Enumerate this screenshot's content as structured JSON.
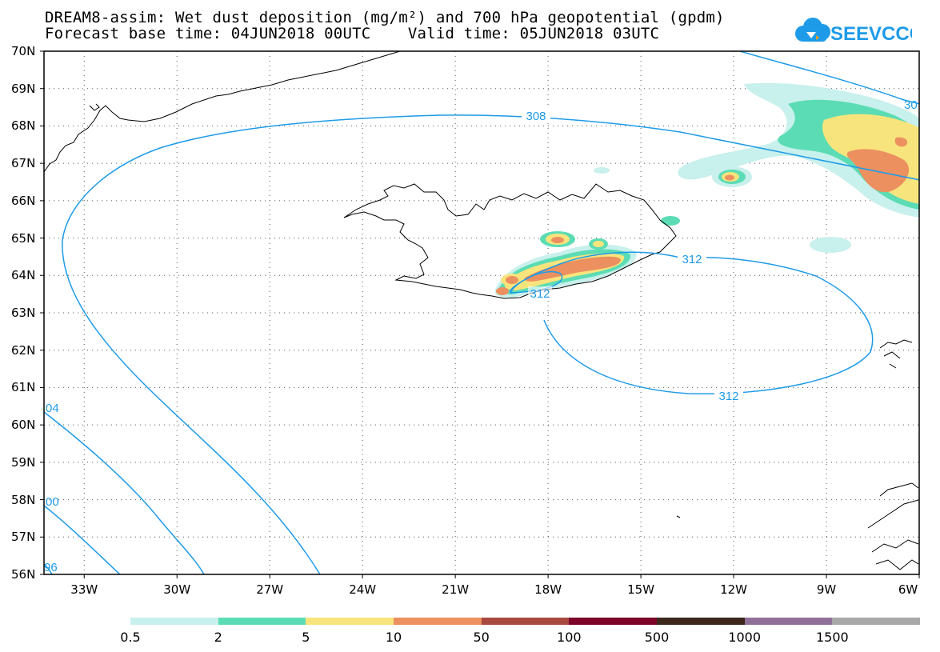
{
  "title_line1": "DREAM8-assim: Wet dust deposition (mg/m²) and 700 hPa geopotential (gpdm)",
  "title_line2": "Forecast base time: 04JUN2018 00UTC    Valid time: 05JUN2018 03UTC",
  "logo_text": "SEEVCCC",
  "lat_labels": [
    "70N",
    "69N",
    "68N",
    "67N",
    "66N",
    "65N",
    "64N",
    "63N",
    "62N",
    "61N",
    "60N",
    "59N",
    "58N",
    "57N",
    "56N"
  ],
  "lon_labels": [
    "33W",
    "30W",
    "27W",
    "24W",
    "21W",
    "18W",
    "15W",
    "12W",
    "9W",
    "6W"
  ],
  "contour_labels": [
    "308",
    "312",
    "312",
    "312",
    "30",
    "04",
    "00",
    "96"
  ],
  "legend": {
    "colors": [
      "#c8f0ec",
      "#5cdcb4",
      "#f8e47c",
      "#ec9060",
      "#a84a40",
      "#7c0428",
      "#3c281c",
      "#907098",
      "#a8a8a8"
    ],
    "labels": [
      "0.5",
      "2",
      "5",
      "10",
      "50",
      "100",
      "500",
      "1000",
      "1500"
    ]
  },
  "colors": {
    "contour": "#1e9be8",
    "logo": "#1e9be8",
    "coast": "#000000"
  }
}
